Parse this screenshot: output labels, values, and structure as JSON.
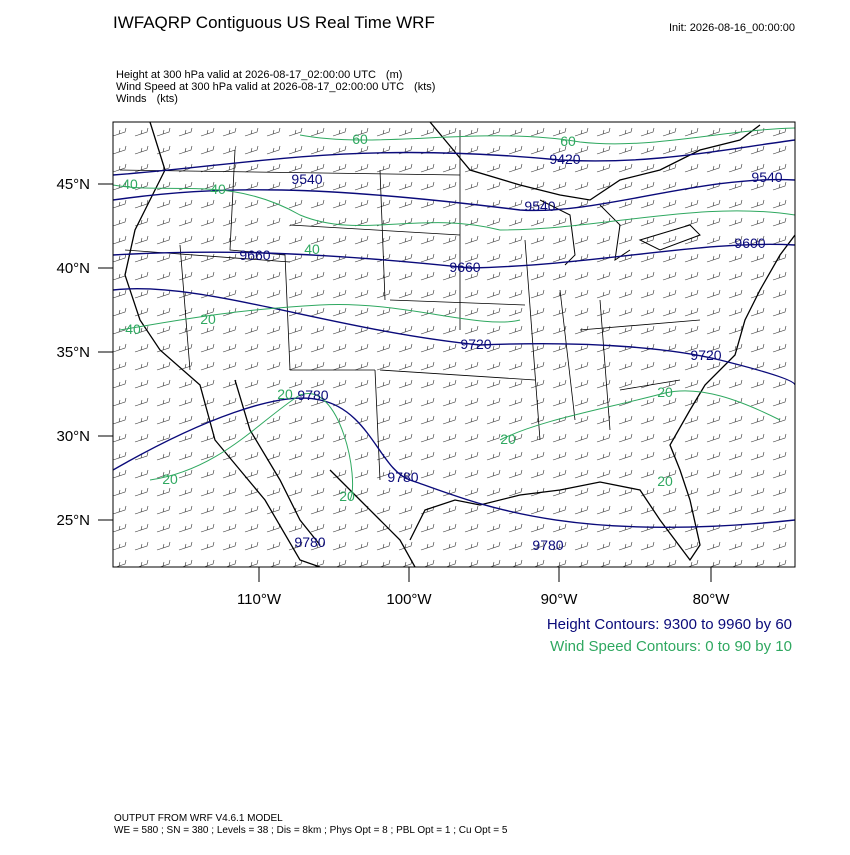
{
  "header": {
    "title": "IWFAQRP Contiguous US Real Time WRF",
    "init": "Init: 2026-08-16_00:00:00"
  },
  "fields": [
    {
      "name": "Height at 300 hPa valid at 2026-08-17_02:00:00 UTC",
      "unit": "(m)"
    },
    {
      "name": "Wind Speed at 300 hPa valid at 2026-08-17_02:00:00 UTC",
      "unit": "(kts)"
    },
    {
      "name": "Winds",
      "unit": "(kts)"
    }
  ],
  "map": {
    "lat_labels": [
      "45°N",
      "40°N",
      "35°N",
      "30°N",
      "25°N"
    ],
    "lon_labels": [
      "110°W",
      "100°W",
      "90°W",
      "80°W"
    ],
    "height_labels": [
      "9420",
      "9540",
      "9540",
      "9540",
      "9600",
      "9660",
      "9660",
      "9720",
      "9720",
      "9780",
      "9780",
      "9780",
      "9780"
    ],
    "wind_labels": [
      "60",
      "60",
      "40",
      "40",
      "40",
      "20",
      "40",
      "20",
      "20",
      "20",
      "20",
      "20",
      "20"
    ]
  },
  "legend": {
    "height": "Height Contours: 9300 to 9960 by 60",
    "wind": "Wind Speed Contours: 0 to 90 by 10"
  },
  "footer": [
    "OUTPUT FROM WRF V4.6.1 MODEL",
    "WE = 580 ; SN = 380 ; Levels = 38 ; Dis = 8km ; Phys Opt = 8 ; PBL Opt = 1 ; Cu Opt = 5"
  ]
}
